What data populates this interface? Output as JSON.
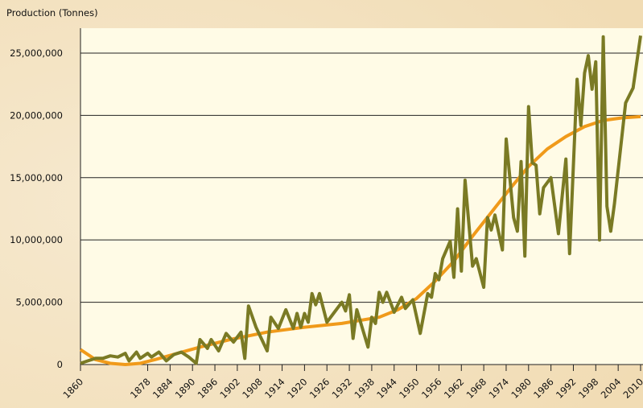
{
  "chart_data": {
    "type": "line",
    "y_label": "Production (Tonnes)",
    "xlim": [
      1860,
      2010
    ],
    "ylim": [
      0,
      27000000
    ],
    "xticks": [
      1860,
      1878,
      1884,
      1890,
      1896,
      1902,
      1908,
      1914,
      1920,
      1926,
      1932,
      1938,
      1944,
      1950,
      1956,
      1962,
      1968,
      1974,
      1980,
      1986,
      1992,
      1998,
      2004,
      2010
    ],
    "yticks": [
      0,
      {
        "value": 5000000,
        "label": "5,000,000"
      },
      {
        "value": 10000000,
        "label": "10,000,000"
      },
      {
        "value": 15000000,
        "label": "15,000,000"
      },
      {
        "value": 20000000,
        "label": "20,000,000"
      },
      {
        "value": 25000000,
        "label": "25,000,000"
      }
    ],
    "grid": true,
    "series": [
      {
        "color": "#7a7a24",
        "x": [
          1860,
          1862,
          1864,
          1866,
          1868,
          1870,
          1872,
          1873,
          1875,
          1876,
          1878,
          1879,
          1881,
          1883,
          1885,
          1887,
          1889,
          1891,
          1892,
          1894,
          1895,
          1897,
          1899,
          1901,
          1903,
          1904,
          1905,
          1907,
          1910,
          1911,
          1913,
          1915,
          1917,
          1918,
          1919,
          1920,
          1921,
          1922,
          1923,
          1924,
          1926,
          1928,
          1930,
          1931,
          1932,
          1933,
          1934,
          1937,
          1938,
          1939,
          1940,
          1941,
          1942,
          1944,
          1946,
          1947,
          1949,
          1951,
          1953,
          1954,
          1955,
          1956,
          1957,
          1959,
          1960,
          1961,
          1962,
          1963,
          1965,
          1966,
          1968,
          1969,
          1970,
          1971,
          1973,
          1974,
          1976,
          1977,
          1978,
          1979,
          1980,
          1981,
          1982,
          1983,
          1984,
          1986,
          1988,
          1990,
          1991,
          1993,
          1994,
          1995,
          1996,
          1997,
          1998,
          1999,
          2000,
          2001,
          2002,
          2003,
          2006,
          2008,
          2010
        ],
        "values": [
          100000,
          300000,
          500000,
          500000,
          700000,
          600000,
          900000,
          300000,
          1000000,
          500000,
          900000,
          600000,
          1000000,
          300000,
          800000,
          1000000,
          600000,
          100000,
          2000000,
          1300000,
          2000000,
          1100000,
          2500000,
          1800000,
          2600000,
          500000,
          4700000,
          3000000,
          1100000,
          3800000,
          2900000,
          4400000,
          2900000,
          4100000,
          3000000,
          4100000,
          3400000,
          5700000,
          4800000,
          5700000,
          3400000,
          4200000,
          5000000,
          4300000,
          5600000,
          2100000,
          4400000,
          1400000,
          3800000,
          3300000,
          5800000,
          5000000,
          5800000,
          4200000,
          5400000,
          4500000,
          5200000,
          2500000,
          5700000,
          5400000,
          7300000,
          6800000,
          8500000,
          9900000,
          7000000,
          12500000,
          7500000,
          14800000,
          7900000,
          8500000,
          6200000,
          11800000,
          10800000,
          12000000,
          9200000,
          18100000,
          11800000,
          10700000,
          16300000,
          8700000,
          20700000,
          16200000,
          16000000,
          12100000,
          14200000,
          15000000,
          10500000,
          16500000,
          8900000,
          22900000,
          19200000,
          23400000,
          24800000,
          22100000,
          24300000,
          10000000,
          26300000,
          12700000,
          10700000,
          12900000,
          21000000,
          22200000,
          26400000
        ]
      },
      {
        "color": "#f09a1a",
        "x": [
          1860,
          1864,
          1868,
          1872,
          1876,
          1880,
          1886,
          1892,
          1900,
          1910,
          1920,
          1930,
          1940,
          1945,
          1950,
          1955,
          1960,
          1965,
          1970,
          1975,
          1980,
          1985,
          1990,
          1995,
          2000,
          2005,
          2010
        ],
        "values": [
          1200000,
          400000,
          100000,
          0,
          100000,
          400000,
          900000,
          1400000,
          2000000,
          2600000,
          3000000,
          3300000,
          3800000,
          4400000,
          5300000,
          6700000,
          8300000,
          10300000,
          12200000,
          14100000,
          15900000,
          17300000,
          18300000,
          19100000,
          19600000,
          19800000,
          19900000
        ]
      }
    ]
  }
}
